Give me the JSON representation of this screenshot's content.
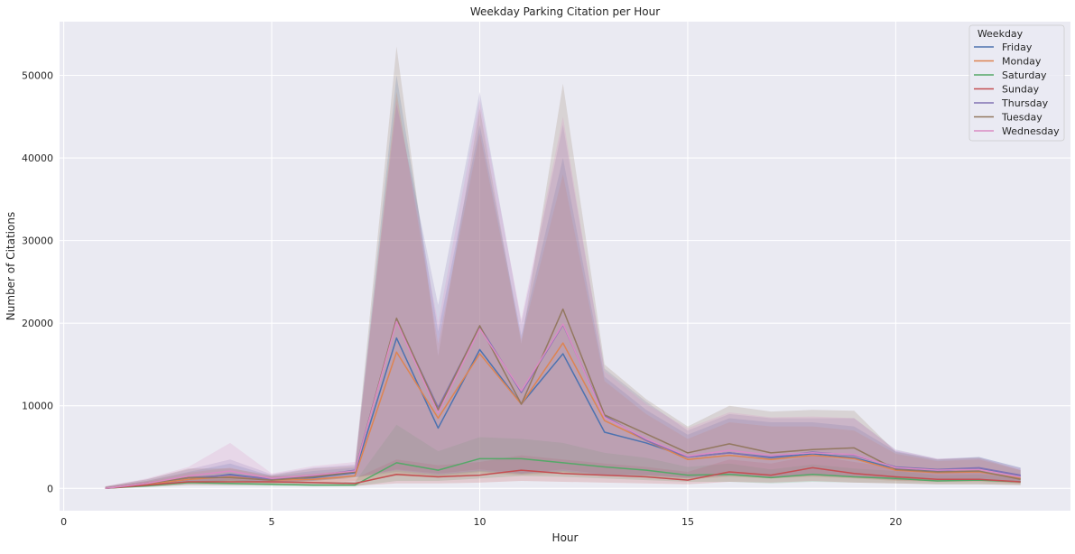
{
  "chart_data": {
    "type": "line",
    "title": "Weekday Parking Citation per Hour",
    "xlabel": "Hour",
    "ylabel": "Number of Citations",
    "xlim": [
      -0.1,
      24.2
    ],
    "ylim": [
      -2700,
      56500
    ],
    "x_ticks": [
      0,
      5,
      10,
      15,
      20
    ],
    "y_ticks": [
      0,
      10000,
      20000,
      30000,
      40000,
      50000
    ],
    "grid": true,
    "legend": {
      "title": "Weekday",
      "placement": "top-right"
    },
    "background_color": "#EAEAF2",
    "x": [
      1,
      2,
      3,
      4,
      5,
      6,
      7,
      8,
      9,
      10,
      11,
      12,
      13,
      14,
      15,
      16,
      17,
      18,
      19,
      20,
      21,
      22,
      23
    ],
    "series": [
      {
        "name": "Friday",
        "color": "#4C72B0",
        "values": [
          0,
          500,
          1100,
          1700,
          1100,
          1300,
          1900,
          18200,
          7300,
          16800,
          10200,
          16300,
          6800,
          5500,
          3800,
          4300,
          3700,
          4200,
          3700,
          2400,
          2100,
          2400,
          1500
        ],
        "lower": [
          0,
          300,
          600,
          1000,
          700,
          900,
          1300,
          2000,
          1500,
          2000,
          1700,
          2000,
          1500,
          1500,
          1200,
          1500,
          1300,
          1500,
          1300,
          1000,
          900,
          1000,
          700
        ],
        "upper": [
          200,
          900,
          2000,
          3000,
          1500,
          2100,
          2500,
          50000,
          19000,
          44000,
          18500,
          40000,
          13500,
          9500,
          6500,
          8500,
          8000,
          8000,
          7500,
          4500,
          3500,
          3800,
          2500
        ]
      },
      {
        "name": "Monday",
        "color": "#DD8452",
        "values": [
          0,
          500,
          1100,
          1400,
          1000,
          1100,
          1500,
          16500,
          8500,
          16300,
          10200,
          17600,
          8200,
          5800,
          3500,
          4000,
          3500,
          4000,
          3600,
          2200,
          1900,
          2000,
          1200
        ],
        "lower": [
          0,
          300,
          600,
          900,
          600,
          700,
          900,
          1500,
          1300,
          1800,
          1600,
          1800,
          1500,
          1400,
          1100,
          1400,
          1200,
          1400,
          1200,
          900,
          800,
          800,
          600
        ],
        "upper": [
          200,
          900,
          1900,
          2500,
          1400,
          1800,
          2200,
          48000,
          17500,
          43000,
          18000,
          38000,
          13000,
          9000,
          6000,
          8000,
          7500,
          7500,
          7000,
          4200,
          3300,
          3500,
          2200
        ]
      },
      {
        "name": "Saturday",
        "color": "#55A868",
        "values": [
          0,
          300,
          700,
          600,
          500,
          400,
          400,
          3100,
          2200,
          3600,
          3600,
          3100,
          2600,
          2200,
          1600,
          1700,
          1300,
          1700,
          1400,
          1200,
          900,
          1000,
          800
        ],
        "lower": [
          0,
          150,
          400,
          350,
          300,
          250,
          250,
          900,
          900,
          1200,
          1500,
          1400,
          1200,
          1000,
          800,
          800,
          600,
          800,
          700,
          600,
          500,
          500,
          400
        ],
        "upper": [
          150,
          600,
          1200,
          1100,
          900,
          800,
          800,
          7700,
          4500,
          6200,
          6000,
          5500,
          4300,
          3700,
          2600,
          3000,
          2300,
          2900,
          2400,
          2100,
          1600,
          1700,
          1400
        ]
      },
      {
        "name": "Sunday",
        "color": "#C44E52",
        "values": [
          0,
          400,
          800,
          800,
          800,
          700,
          600,
          1700,
          1400,
          1600,
          2200,
          1800,
          1600,
          1400,
          1000,
          2000,
          1600,
          2500,
          1800,
          1400,
          1100,
          1100,
          800
        ],
        "lower": [
          0,
          200,
          400,
          400,
          400,
          350,
          300,
          600,
          600,
          700,
          900,
          800,
          700,
          600,
          500,
          800,
          700,
          900,
          700,
          600,
          500,
          500,
          400
        ],
        "upper": [
          150,
          800,
          1500,
          1500,
          1500,
          1400,
          1200,
          3500,
          2800,
          3200,
          4000,
          3500,
          3000,
          2600,
          2000,
          3500,
          3000,
          4000,
          3200,
          2500,
          2000,
          2000,
          1500
        ]
      },
      {
        "name": "Thursday",
        "color": "#8172B3",
        "values": [
          0,
          600,
          1300,
          1600,
          1100,
          1500,
          2200,
          20400,
          9800,
          19600,
          11600,
          19800,
          8800,
          5800,
          3800,
          4300,
          3800,
          4400,
          4000,
          2600,
          2300,
          2500,
          1600
        ],
        "lower": [
          0,
          350,
          700,
          900,
          700,
          1000,
          1400,
          2200,
          1700,
          2100,
          1800,
          2100,
          1600,
          1600,
          1300,
          1600,
          1400,
          1600,
          1400,
          1100,
          1000,
          1100,
          800
        ],
        "upper": [
          250,
          1100,
          2300,
          3500,
          1700,
          2500,
          2900,
          46500,
          22200,
          48000,
          20000,
          44000,
          14500,
          10500,
          7000,
          9000,
          8500,
          8500,
          8500,
          4700,
          3600,
          3800,
          2500
        ]
      },
      {
        "name": "Tuesday",
        "color": "#937860",
        "values": [
          0,
          600,
          1300,
          1300,
          1000,
          1400,
          2000,
          20600,
          9500,
          19700,
          10200,
          21700,
          8900,
          6600,
          4300,
          5400,
          4300,
          4700,
          4900,
          2300,
          2000,
          2100,
          1100
        ],
        "lower": [
          0,
          350,
          700,
          800,
          600,
          900,
          1300,
          2300,
          1800,
          2300,
          1800,
          2300,
          1700,
          1600,
          1300,
          1700,
          1400,
          1700,
          1500,
          1000,
          900,
          1000,
          600
        ],
        "upper": [
          250,
          1100,
          2400,
          2400,
          1600,
          2400,
          2700,
          53500,
          16000,
          46000,
          17500,
          49000,
          15000,
          10800,
          7500,
          10000,
          9300,
          9500,
          9400,
          4400,
          3500,
          3700,
          2200
        ]
      },
      {
        "name": "Wednesday",
        "color": "#DA8BC3",
        "values": [
          0,
          600,
          1500,
          2100,
          1200,
          1600,
          2100,
          20200,
          9100,
          19300,
          11800,
          19900,
          8600,
          6000,
          3900,
          4600,
          4000,
          4300,
          4100,
          2500,
          2200,
          2300,
          1400
        ],
        "lower": [
          0,
          350,
          800,
          1100,
          800,
          1000,
          1400,
          2200,
          1700,
          2200,
          1800,
          2200,
          1600,
          1600,
          1300,
          1600,
          1400,
          1600,
          1400,
          1100,
          1000,
          1000,
          700
        ],
        "upper": [
          250,
          1200,
          2600,
          5500,
          1800,
          2700,
          3200,
          47000,
          20000,
          47000,
          20500,
          45000,
          14200,
          10200,
          7300,
          9200,
          8600,
          8700,
          8500,
          4600,
          3600,
          3700,
          2400
        ]
      }
    ]
  }
}
